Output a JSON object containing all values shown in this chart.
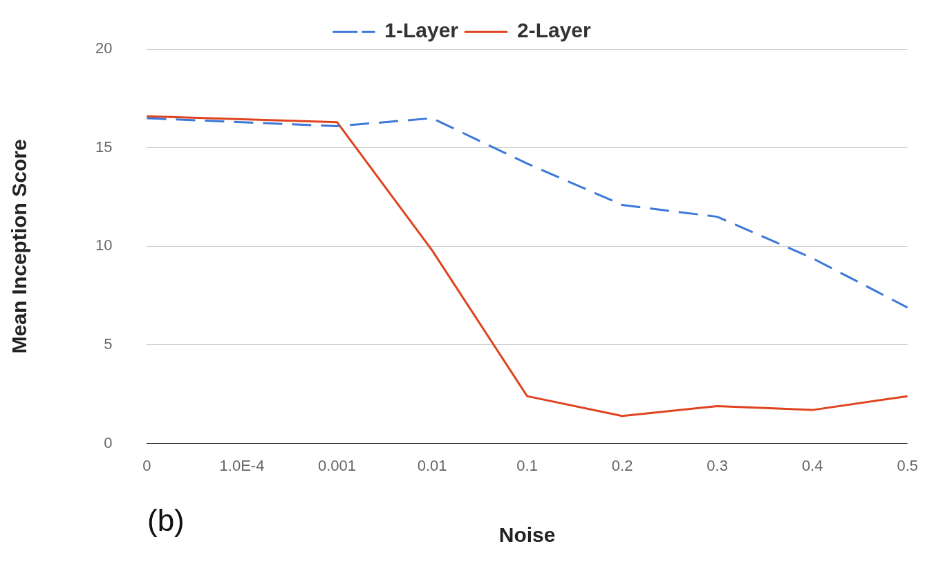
{
  "chart_data": {
    "type": "line",
    "xlabel": "Noise",
    "ylabel": "Mean Inception Score",
    "categories": [
      "0",
      "1.0E-4",
      "0.001",
      "0.01",
      "0.1",
      "0.2",
      "0.3",
      "0.4",
      "0.5"
    ],
    "series": [
      {
        "name": "1-Layer",
        "color": "#3c78d8",
        "line_style": "dashed",
        "values": [
          16.5,
          16.3,
          16.1,
          16.5,
          14.2,
          12.1,
          11.5,
          9.4,
          6.9
        ]
      },
      {
        "name": "2-Layer",
        "color": "#e0431f",
        "line_style": "solid",
        "values": [
          16.6,
          16.45,
          16.3,
          9.8,
          2.4,
          1.4,
          1.9,
          1.7,
          2.4
        ]
      }
    ],
    "ylim": [
      0,
      20
    ],
    "yticks": [
      0,
      5,
      10,
      15,
      20
    ],
    "grid": "y",
    "legend": "top",
    "marker": "none",
    "annotations": [
      "(b)"
    ]
  }
}
